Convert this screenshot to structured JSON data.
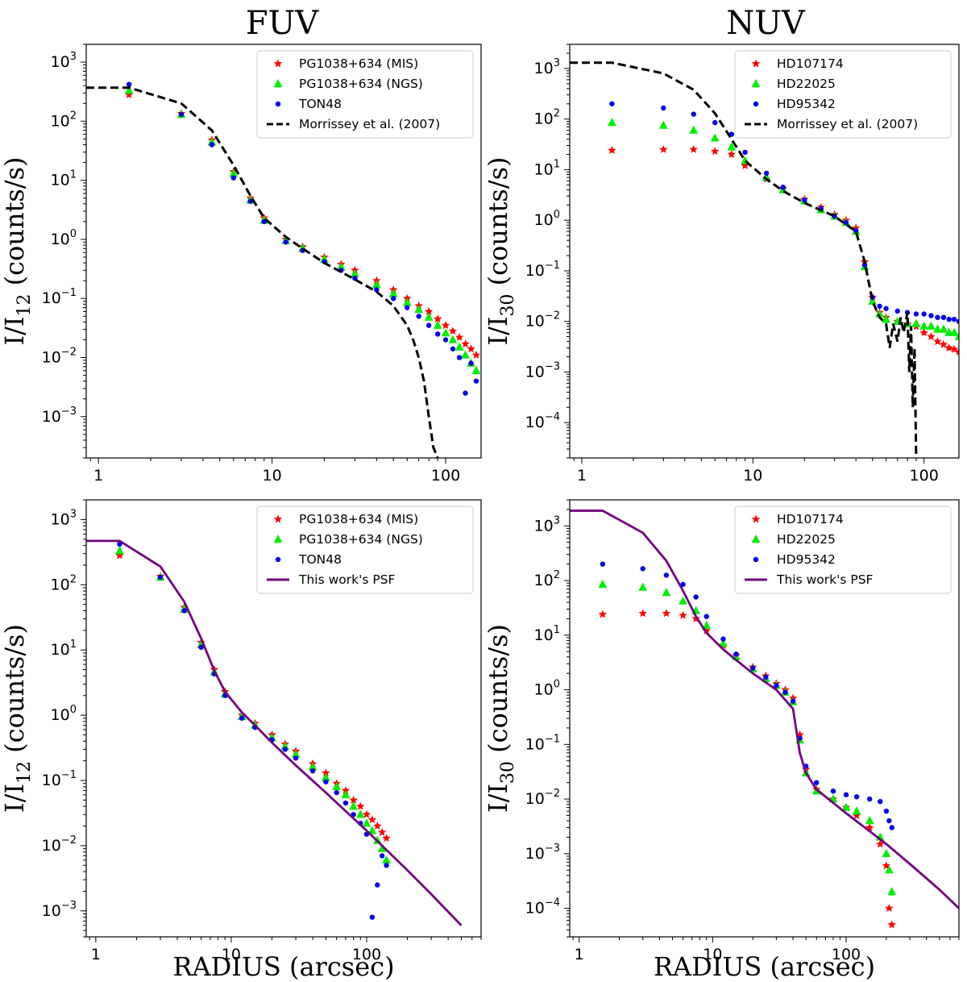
{
  "figure": {
    "column_titles": [
      "FUV",
      "NUV"
    ],
    "xlabel": "RADIUS (arcsec)"
  },
  "colors": {
    "red": "#ff0000",
    "green": "#00ee00",
    "blue": "#0000ee",
    "black": "#000000",
    "purple": "#73007f"
  },
  "chart_data": [
    {
      "type": "scatter",
      "id": "fuv-top",
      "title": "FUV",
      "ylabel": "I/I12 (counts/s)",
      "ylabel_sub": "12",
      "xlabel": "",
      "xscale": "log",
      "yscale": "log",
      "xlim": [
        0.85,
        160
      ],
      "ylim": [
        0.0002,
        2000
      ],
      "xticks": [
        1,
        10,
        100
      ],
      "xtick_labels": [
        "1",
        "10",
        "100"
      ],
      "yticks": [
        -3,
        -2,
        -1,
        0,
        1,
        2,
        3
      ],
      "legend": {
        "loc": "upper right",
        "entries": [
          "PG1038+634 (MIS)",
          "PG1038+634 (NGS)",
          "TON48",
          "Morrissey et al. (2007)"
        ]
      },
      "series": [
        {
          "name": "PG1038+634 (MIS)",
          "marker": "star",
          "color": "#ff0000",
          "x": [
            1.5,
            3,
            4.5,
            6,
            7.5,
            9,
            12,
            15,
            20,
            25,
            30,
            40,
            50,
            60,
            70,
            80,
            90,
            100,
            110,
            120,
            130,
            140,
            150
          ],
          "y": [
            280,
            135,
            48,
            14,
            5,
            2.3,
            1.0,
            0.75,
            0.5,
            0.38,
            0.3,
            0.2,
            0.14,
            0.1,
            0.075,
            0.06,
            0.045,
            0.035,
            0.028,
            0.022,
            0.017,
            0.014,
            0.011
          ]
        },
        {
          "name": "PG1038+634 (NGS)",
          "marker": "triangle",
          "color": "#00ee00",
          "x": [
            1.5,
            3,
            4.5,
            6,
            7.5,
            9,
            12,
            15,
            20,
            25,
            30,
            40,
            50,
            60,
            70,
            80,
            90,
            100,
            110,
            120,
            130,
            140,
            150
          ],
          "y": [
            330,
            130,
            44,
            13,
            4.6,
            2.1,
            0.95,
            0.7,
            0.46,
            0.34,
            0.26,
            0.17,
            0.12,
            0.085,
            0.065,
            0.048,
            0.035,
            0.026,
            0.02,
            0.015,
            0.011,
            0.008,
            0.006
          ]
        },
        {
          "name": "TON48",
          "marker": "circle",
          "color": "#0000ee",
          "x": [
            1.5,
            3,
            4.5,
            6,
            7.5,
            9,
            12,
            15,
            20,
            25,
            30,
            40,
            50,
            60,
            70,
            80,
            90,
            100,
            110,
            120,
            130,
            140,
            150
          ],
          "y": [
            420,
            130,
            40,
            11,
            4.4,
            2.0,
            0.9,
            0.65,
            0.42,
            0.3,
            0.22,
            0.14,
            0.1,
            0.07,
            0.05,
            0.035,
            0.025,
            0.02,
            0.014,
            0.01,
            0.0025,
            0.008,
            0.004
          ]
        },
        {
          "name": "Morrissey et al. (2007)",
          "line": "dashed",
          "color": "#000000",
          "x": [
            0.85,
            1.5,
            3,
            4.5,
            6,
            7.5,
            9,
            12,
            15,
            20,
            30,
            40,
            50,
            60,
            65,
            70,
            75,
            80,
            85,
            90
          ],
          "y": [
            370,
            370,
            200,
            70,
            18,
            5.5,
            2.3,
            1.1,
            0.7,
            0.4,
            0.21,
            0.13,
            0.075,
            0.035,
            0.02,
            0.01,
            0.004,
            0.001,
            0.0003,
            0.0002
          ]
        }
      ]
    },
    {
      "type": "scatter",
      "id": "nuv-top",
      "title": "NUV",
      "ylabel": "I/I30 (counts/s)",
      "ylabel_sub": "30",
      "xlabel": "",
      "xscale": "log",
      "yscale": "log",
      "xlim": [
        0.85,
        160
      ],
      "ylim": [
        2e-05,
        3000
      ],
      "xticks": [
        1,
        10,
        100
      ],
      "xtick_labels": [
        "1",
        "10",
        "100"
      ],
      "yticks": [
        -4,
        -3,
        -2,
        -1,
        0,
        1,
        2,
        3
      ],
      "legend": {
        "loc": "upper right",
        "entries": [
          "HD107174",
          "HD22025",
          "HD95342",
          "Morrissey et al. (2007)"
        ]
      },
      "series": [
        {
          "name": "HD107174",
          "marker": "star",
          "color": "#ff0000",
          "x": [
            1.5,
            3,
            4.5,
            6,
            7.5,
            9,
            12,
            15,
            20,
            25,
            30,
            35,
            40,
            45,
            50,
            55,
            60,
            70,
            80,
            90,
            100,
            110,
            120,
            130,
            140,
            150,
            160
          ],
          "y": [
            24,
            25,
            25,
            23,
            20,
            12,
            6.5,
            4.2,
            2.6,
            1.8,
            1.3,
            1.0,
            0.7,
            0.15,
            0.03,
            0.015,
            0.012,
            0.01,
            0.009,
            0.008,
            0.006,
            0.005,
            0.004,
            0.0035,
            0.003,
            0.0028,
            0.0025
          ]
        },
        {
          "name": "HD22025",
          "marker": "triangle",
          "color": "#00ee00",
          "x": [
            1.5,
            3,
            4.5,
            6,
            7.5,
            9,
            12,
            15,
            20,
            25,
            30,
            35,
            40,
            45,
            50,
            55,
            60,
            70,
            80,
            90,
            100,
            110,
            120,
            130,
            140,
            150,
            160
          ],
          "y": [
            85,
            75,
            60,
            42,
            28,
            15,
            7,
            4.0,
            2.4,
            1.6,
            1.2,
            0.9,
            0.6,
            0.12,
            0.025,
            0.014,
            0.011,
            0.01,
            0.009,
            0.009,
            0.008,
            0.008,
            0.007,
            0.007,
            0.006,
            0.006,
            0.005
          ]
        },
        {
          "name": "HD95342",
          "marker": "circle",
          "color": "#0000ee",
          "x": [
            1.5,
            3,
            4.5,
            6,
            7.5,
            9,
            12,
            15,
            20,
            25,
            30,
            35,
            40,
            45,
            50,
            55,
            60,
            70,
            80,
            90,
            100,
            110,
            120,
            130,
            140,
            150,
            160
          ],
          "y": [
            200,
            165,
            125,
            85,
            50,
            22,
            8.5,
            4.5,
            2.5,
            1.7,
            1.2,
            0.9,
            0.62,
            0.13,
            0.03,
            0.02,
            0.018,
            0.016,
            0.015,
            0.014,
            0.014,
            0.013,
            0.012,
            0.012,
            0.011,
            0.011,
            0.01
          ]
        },
        {
          "name": "Morrissey et al. (2007)",
          "line": "dashed",
          "color": "#000000",
          "x": [
            0.85,
            1.5,
            3,
            4.5,
            6,
            7.5,
            9,
            12,
            15,
            20,
            30,
            40,
            45,
            50,
            55,
            60,
            63,
            66,
            70,
            73,
            76,
            80,
            82,
            84,
            86,
            88,
            90
          ],
          "y": [
            1300,
            1300,
            800,
            380,
            130,
            40,
            15,
            6.5,
            3.8,
            2.2,
            1.2,
            0.6,
            0.15,
            0.025,
            0.012,
            0.009,
            0.003,
            0.009,
            0.004,
            0.012,
            0.006,
            0.015,
            0.001,
            0.008,
            0.0002,
            0.003,
            2e-05
          ]
        }
      ]
    },
    {
      "type": "scatter",
      "id": "fuv-bottom",
      "title": "",
      "ylabel": "I/I12 (counts/s)",
      "ylabel_sub": "12",
      "xlabel": "RADIUS (arcsec)",
      "xscale": "log",
      "yscale": "log",
      "xlim": [
        0.85,
        700
      ],
      "ylim": [
        0.0004,
        2000
      ],
      "xticks": [
        1,
        10,
        100
      ],
      "xtick_labels": [
        "1",
        "10",
        "100"
      ],
      "yticks": [
        -3,
        -2,
        -1,
        0,
        1,
        2,
        3
      ],
      "legend": {
        "loc": "upper right",
        "entries": [
          "PG1038+634 (MIS)",
          "PG1038+634 (NGS)",
          "TON48",
          "This work's PSF"
        ]
      },
      "series": [
        {
          "name": "PG1038+634 (MIS)",
          "marker": "star",
          "color": "#ff0000",
          "x": [
            1.5,
            3,
            4.5,
            6,
            7.5,
            9,
            12,
            15,
            20,
            25,
            30,
            40,
            50,
            60,
            70,
            80,
            90,
            100,
            110,
            120,
            130,
            140
          ],
          "y": [
            280,
            135,
            45,
            13,
            5,
            2.3,
            1.0,
            0.75,
            0.5,
            0.36,
            0.28,
            0.18,
            0.13,
            0.09,
            0.07,
            0.05,
            0.04,
            0.03,
            0.025,
            0.02,
            0.016,
            0.013
          ]
        },
        {
          "name": "PG1038+634 (NGS)",
          "marker": "triangle",
          "color": "#00ee00",
          "x": [
            1.5,
            3,
            4.5,
            6,
            7.5,
            9,
            12,
            15,
            20,
            25,
            30,
            40,
            50,
            60,
            70,
            80,
            90,
            100,
            110,
            120,
            130,
            140
          ],
          "y": [
            330,
            130,
            42,
            12,
            4.6,
            2.1,
            0.95,
            0.7,
            0.45,
            0.33,
            0.25,
            0.16,
            0.11,
            0.08,
            0.06,
            0.04,
            0.03,
            0.022,
            0.017,
            0.012,
            0.009,
            0.006
          ]
        },
        {
          "name": "TON48",
          "marker": "circle",
          "color": "#0000ee",
          "x": [
            1.5,
            3,
            4.5,
            6,
            7.5,
            9,
            12,
            15,
            20,
            25,
            30,
            40,
            50,
            60,
            70,
            80,
            90,
            100,
            110,
            120,
            130,
            140
          ],
          "y": [
            420,
            130,
            40,
            11,
            4.3,
            2.0,
            0.9,
            0.65,
            0.42,
            0.3,
            0.22,
            0.14,
            0.095,
            0.065,
            0.045,
            0.03,
            0.022,
            0.015,
            0.0008,
            0.0025,
            0.007,
            0.005
          ]
        },
        {
          "name": "This work's PSF",
          "line": "solid",
          "color": "#73007f",
          "x": [
            0.85,
            1.5,
            3,
            4.5,
            6,
            7.5,
            9,
            12,
            15,
            20,
            30,
            50,
            100,
            200,
            300,
            500
          ],
          "y": [
            470,
            470,
            190,
            55,
            15,
            4.8,
            2.3,
            1.1,
            0.7,
            0.38,
            0.17,
            0.065,
            0.017,
            0.0042,
            0.0018,
            0.0006
          ]
        }
      ]
    },
    {
      "type": "scatter",
      "id": "nuv-bottom",
      "title": "",
      "ylabel": "I/I30 (counts/s)",
      "ylabel_sub": "30",
      "xlabel": "RADIUS (arcsec)",
      "xscale": "log",
      "yscale": "log",
      "xlim": [
        0.85,
        700
      ],
      "ylim": [
        3e-05,
        3000
      ],
      "xticks": [
        1,
        10,
        100
      ],
      "xtick_labels": [
        "1",
        "10",
        "100"
      ],
      "yticks": [
        -4,
        -3,
        -2,
        -1,
        0,
        1,
        2,
        3
      ],
      "legend": {
        "loc": "upper right",
        "entries": [
          "HD107174",
          "HD22025",
          "HD95342",
          "This work's PSF"
        ]
      },
      "series": [
        {
          "name": "HD107174",
          "marker": "star",
          "color": "#ff0000",
          "x": [
            1.5,
            3,
            4.5,
            6,
            7.5,
            9,
            12,
            15,
            20,
            25,
            30,
            35,
            40,
            45,
            50,
            60,
            80,
            100,
            120,
            150,
            180,
            200,
            210,
            220
          ],
          "y": [
            24,
            25,
            25,
            23,
            20,
            12,
            6.5,
            4.2,
            2.6,
            1.8,
            1.3,
            1.0,
            0.7,
            0.15,
            0.035,
            0.015,
            0.01,
            0.007,
            0.005,
            0.003,
            0.0015,
            0.0006,
            0.0001,
            5e-05
          ]
        },
        {
          "name": "HD22025",
          "marker": "triangle",
          "color": "#00ee00",
          "x": [
            1.5,
            3,
            4.5,
            6,
            7.5,
            9,
            12,
            15,
            20,
            25,
            30,
            35,
            40,
            45,
            50,
            60,
            80,
            100,
            120,
            150,
            180,
            200,
            210,
            220
          ],
          "y": [
            85,
            75,
            60,
            42,
            28,
            15,
            7,
            4.0,
            2.4,
            1.6,
            1.2,
            0.9,
            0.6,
            0.12,
            0.03,
            0.014,
            0.01,
            0.007,
            0.006,
            0.004,
            0.002,
            0.001,
            0.0005,
            0.0002
          ]
        },
        {
          "name": "HD95342",
          "marker": "circle",
          "color": "#0000ee",
          "x": [
            1.5,
            3,
            4.5,
            6,
            7.5,
            9,
            12,
            15,
            20,
            25,
            30,
            35,
            40,
            45,
            50,
            60,
            80,
            100,
            120,
            150,
            180,
            200,
            210,
            220
          ],
          "y": [
            200,
            165,
            125,
            85,
            50,
            22,
            8.5,
            4.5,
            2.5,
            1.7,
            1.2,
            0.9,
            0.62,
            0.13,
            0.04,
            0.02,
            0.014,
            0.012,
            0.011,
            0.01,
            0.009,
            0.006,
            0.004,
            0.003
          ]
        },
        {
          "name": "This work's PSF",
          "line": "solid",
          "color": "#73007f",
          "x": [
            0.85,
            1.5,
            3,
            4.5,
            6,
            7.5,
            9,
            12,
            15,
            20,
            30,
            40,
            45,
            50,
            60,
            100,
            200,
            300,
            500,
            700
          ],
          "y": [
            1900,
            1900,
            750,
            230,
            65,
            22,
            11,
            5.5,
            3.5,
            2.0,
            1.0,
            0.45,
            0.07,
            0.03,
            0.015,
            0.0055,
            0.0015,
            0.00065,
            0.00022,
            0.0001
          ]
        }
      ]
    }
  ]
}
